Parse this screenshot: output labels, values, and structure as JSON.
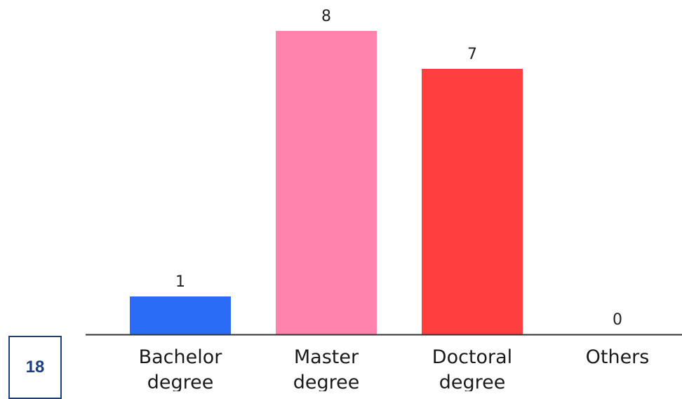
{
  "page_number": "18",
  "chart_data": {
    "type": "bar",
    "categories": [
      [
        "Bachelor",
        "degree"
      ],
      [
        "Master",
        "degree"
      ],
      [
        "Doctoral",
        "degree"
      ],
      [
        "Others"
      ]
    ],
    "values": [
      1,
      8,
      7,
      0
    ],
    "value_labels": [
      "1",
      "8",
      "7",
      "0"
    ],
    "colors": [
      "#2b6cf6",
      "#ff83ad",
      "#ff3f3f",
      "#cccccc"
    ],
    "axis_color": "#333333",
    "grid": false,
    "legend": "none",
    "title": "",
    "xlabel": "",
    "ylabel": "",
    "ylim": [
      0,
      8
    ]
  }
}
